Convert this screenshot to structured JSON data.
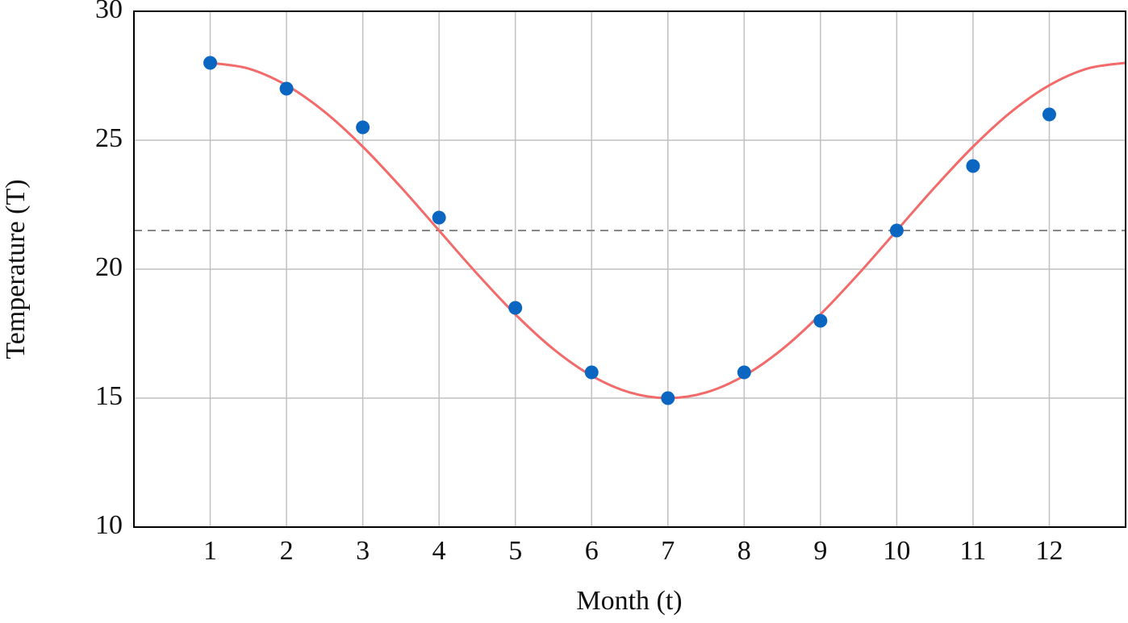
{
  "chart_data": {
    "type": "scatter",
    "x_label": "Month (t)",
    "y_label": "Temperature (T)",
    "xlim": [
      0,
      13
    ],
    "ylim": [
      10,
      30
    ],
    "xticks": [
      1,
      2,
      3,
      4,
      5,
      6,
      7,
      8,
      9,
      10,
      11,
      12
    ],
    "yticks": [
      10,
      15,
      20,
      25,
      30
    ],
    "grid": true,
    "reference_line": {
      "value": 21.5,
      "color": "#888888",
      "dashed": true
    },
    "series": [
      {
        "mode": "line",
        "color": "#f26a6a",
        "x": [
          1,
          1.5,
          2,
          2.5,
          3,
          3.5,
          4,
          4.5,
          5,
          5.5,
          6,
          6.5,
          7,
          7.5,
          8,
          8.5,
          9,
          9.5,
          10,
          10.5,
          11,
          11.5,
          12,
          12.5,
          13
        ],
        "values": [
          28,
          27.78,
          27.13,
          26.1,
          24.75,
          23.18,
          21.5,
          19.82,
          18.25,
          16.9,
          15.87,
          15.22,
          15,
          15.22,
          15.87,
          16.9,
          18.25,
          19.82,
          21.5,
          23.18,
          24.75,
          26.1,
          27.13,
          27.78,
          28
        ]
      },
      {
        "mode": "markers",
        "color": "#0b66c2",
        "x": [
          1,
          2,
          3,
          4,
          5,
          6,
          7,
          8,
          9,
          10,
          11,
          12
        ],
        "values": [
          28,
          27,
          25.5,
          22,
          18.5,
          16,
          15,
          16,
          18,
          21.5,
          24,
          26
        ]
      }
    ]
  }
}
